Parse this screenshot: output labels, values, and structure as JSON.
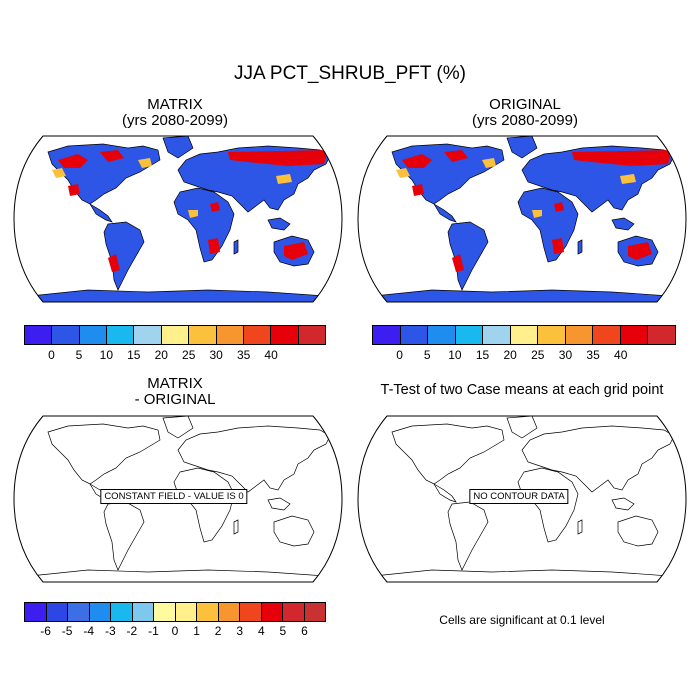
{
  "title": "JJA PCT_SHRUB_PFT (%)",
  "panels": {
    "top_left": {
      "title_line1": "MATRIX",
      "title_line2": "(yrs 2080-2099)"
    },
    "top_right": {
      "title_line1": "ORIGINAL",
      "title_line2": "(yrs 2080-2099)"
    },
    "bottom_left": {
      "title_line1": "MATRIX",
      "title_line2": "- ORIGINAL",
      "message": "CONSTANT FIELD - VALUE IS 0"
    },
    "bottom_right": {
      "title": "T-Test of two Case means at each grid point",
      "message": "NO CONTOUR DATA",
      "note": "Cells are significant at 0.1 level"
    }
  },
  "colorbar_main": {
    "colors": [
      "#3c1ef0",
      "#2d55e6",
      "#1f8cf0",
      "#19b9f0",
      "#9fd3ee",
      "#fff08c",
      "#fcc13c",
      "#f7962e",
      "#f0461e",
      "#e6000a",
      "#d2282d"
    ],
    "labels": [
      "0",
      "5",
      "10",
      "15",
      "20",
      "25",
      "30",
      "35",
      "40"
    ]
  },
  "colorbar_diff": {
    "colors": [
      "#3c1ef0",
      "#2d46e6",
      "#3c6ee6",
      "#1f8cf0",
      "#19b9f0",
      "#7ec8f0",
      "#fffaa0",
      "#fff08c",
      "#fcc13c",
      "#f7962e",
      "#f0461e",
      "#e6000a",
      "#d2282d",
      "#c83232"
    ],
    "labels": [
      "-6",
      "-5",
      "-4",
      "-3",
      "-2",
      "-1",
      "0",
      "1",
      "2",
      "3",
      "4",
      "5",
      "6"
    ]
  },
  "land_color": "#2d55e6",
  "shrub_high_color": "#e6000a"
}
